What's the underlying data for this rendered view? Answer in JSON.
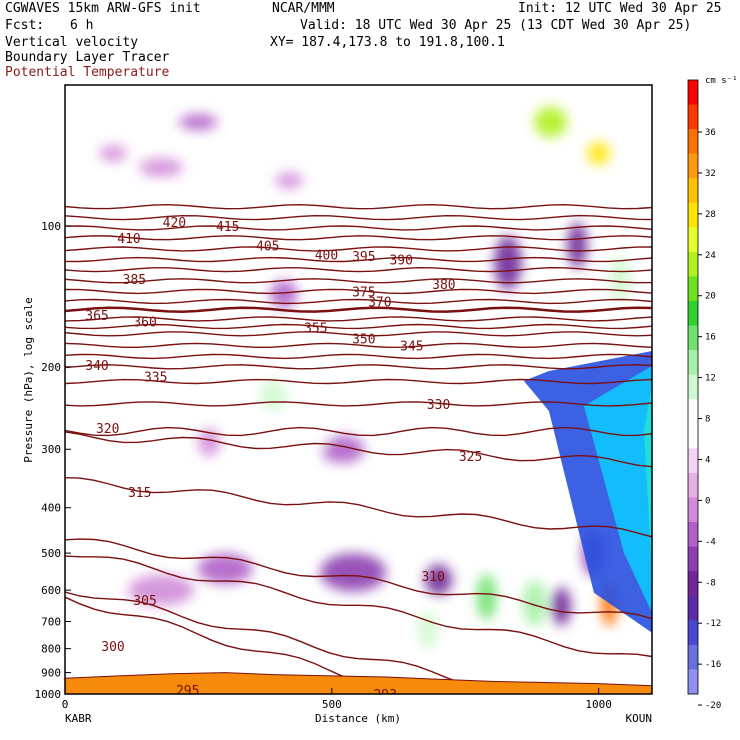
{
  "header": {
    "model": "CGWAVES 15km ARW-GFS init",
    "org": "NCAR/MMM",
    "init": "Init: 12 UTC Wed 30 Apr 25",
    "fcst_label": "Fcst:",
    "fcst_value": "6 h",
    "valid": "Valid: 18 UTC Wed 30 Apr 25 (13 CDT Wed 30 Apr 25)",
    "field1": "Vertical velocity",
    "field2": "Boundary Layer Tracer",
    "field3": "Potential Temperature",
    "xy": "XY= 187.4,173.8 to 191.8,100.1"
  },
  "colors": {
    "theta_contour": "#7a1010",
    "field3_text": "#8b1a1a",
    "terrain": "#f58a0b"
  },
  "chart_data": {
    "type": "heatmap",
    "xlabel": "Distance (km)",
    "ylabel": "Pressure (hPa), log scale",
    "x_range": [
      0,
      1100
    ],
    "x_ticks": [
      "0",
      "500",
      "1000"
    ],
    "x_end_labels": [
      "KABR",
      "KOUN"
    ],
    "y_scale": "log",
    "y_range": [
      1000,
      50
    ],
    "y_ticks": [
      100,
      200,
      300,
      400,
      500,
      600,
      700,
      800,
      900,
      1000
    ],
    "colorbar": {
      "units": "cm s⁻¹",
      "labels": [
        36,
        32,
        28,
        24,
        20,
        16,
        12,
        8,
        4,
        0,
        -4,
        -8,
        -12,
        -16,
        -20
      ],
      "colors": [
        "#ff0000",
        "#ff3a00",
        "#ff7000",
        "#ff9a10",
        "#ffc000",
        "#ffe400",
        "#e6ff30",
        "#b0f020",
        "#6ee020",
        "#30d030",
        "#70e070",
        "#a8f0a8",
        "#d0f8d0",
        "#ffffff",
        "#ffffff",
        "#f4d4f4",
        "#e6b0e6",
        "#d08cd8",
        "#b060c8",
        "#8c40b0",
        "#6f2898",
        "#5a2ca8",
        "#4848d0",
        "#6870e0",
        "#9090f0"
      ]
    },
    "theta_contours": [
      {
        "value": 295,
        "p": 925
      },
      {
        "value": 300,
        "p": 830
      },
      {
        "value": 305,
        "p": 650
      },
      {
        "value": 310,
        "p": 570
      },
      {
        "value": 315,
        "p": 400
      },
      {
        "value": 320,
        "p": 300
      },
      {
        "value": 325,
        "p": 275
      },
      {
        "value": 330,
        "p": 240
      },
      {
        "value": 335,
        "p": 215
      },
      {
        "value": 340,
        "p": 200
      },
      {
        "value": 345,
        "p": 190
      },
      {
        "value": 350,
        "p": 180
      },
      {
        "value": 355,
        "p": 170
      },
      {
        "value": 360,
        "p": 164
      },
      {
        "value": 365,
        "p": 158
      },
      {
        "value": 370,
        "p": 151
      },
      {
        "value": 375,
        "p": 145
      },
      {
        "value": 380,
        "p": 138
      },
      {
        "value": 385,
        "p": 131
      },
      {
        "value": 390,
        "p": 124
      },
      {
        "value": 395,
        "p": 118
      },
      {
        "value": 400,
        "p": 112
      },
      {
        "value": 405,
        "p": 106
      },
      {
        "value": 410,
        "p": 101
      },
      {
        "value": 415,
        "p": 96
      },
      {
        "value": 420,
        "p": 91
      }
    ],
    "theta_labels": [
      {
        "text": "420",
        "x": 205,
        "p": 98
      },
      {
        "text": "415",
        "x": 305,
        "p": 100
      },
      {
        "text": "410",
        "x": 120,
        "p": 106
      },
      {
        "text": "405",
        "x": 380,
        "p": 110
      },
      {
        "text": "400",
        "x": 490,
        "p": 115
      },
      {
        "text": "395",
        "x": 560,
        "p": 116
      },
      {
        "text": "390",
        "x": 630,
        "p": 118
      },
      {
        "text": "385",
        "x": 130,
        "p": 130
      },
      {
        "text": "380",
        "x": 710,
        "p": 133
      },
      {
        "text": "375",
        "x": 560,
        "p": 138
      },
      {
        "text": "370",
        "x": 590,
        "p": 145
      },
      {
        "text": "365",
        "x": 60,
        "p": 155
      },
      {
        "text": "360",
        "x": 150,
        "p": 160
      },
      {
        "text": "355",
        "x": 470,
        "p": 165
      },
      {
        "text": "350",
        "x": 560,
        "p": 174
      },
      {
        "text": "345",
        "x": 650,
        "p": 180
      },
      {
        "text": "340",
        "x": 60,
        "p": 198
      },
      {
        "text": "335",
        "x": 170,
        "p": 210
      },
      {
        "text": "330",
        "x": 700,
        "p": 240
      },
      {
        "text": "325",
        "x": 760,
        "p": 310
      },
      {
        "text": "320",
        "x": 80,
        "p": 270
      },
      {
        "text": "315",
        "x": 140,
        "p": 370
      },
      {
        "text": "310",
        "x": 690,
        "p": 560
      },
      {
        "text": "305",
        "x": 150,
        "p": 630
      },
      {
        "text": "300",
        "x": 90,
        "p": 790
      },
      {
        "text": "295",
        "x": 230,
        "p": 980
      },
      {
        "text": "293",
        "x": 600,
        "p": 1000
      }
    ],
    "velocity_blobs": [
      {
        "x": 250,
        "p": 60,
        "rx": 35,
        "ry": 10,
        "w": -8
      },
      {
        "x": 180,
        "p": 75,
        "rx": 40,
        "ry": 12,
        "w": -4
      },
      {
        "x": 90,
        "p": 70,
        "rx": 25,
        "ry": 10,
        "w": -4
      },
      {
        "x": 210,
        "p": 130,
        "rx": 30,
        "ry": 25,
        "w": 6
      },
      {
        "x": 410,
        "p": 140,
        "rx": 25,
        "ry": 18,
        "w": -6
      },
      {
        "x": 420,
        "p": 80,
        "rx": 25,
        "ry": 10,
        "w": -4
      },
      {
        "x": 390,
        "p": 230,
        "rx": 25,
        "ry": 20,
        "w": 8
      },
      {
        "x": 300,
        "p": 190,
        "rx": 30,
        "ry": 12,
        "w": 4
      },
      {
        "x": 500,
        "p": 190,
        "rx": 20,
        "ry": 15,
        "w": 4
      },
      {
        "x": 270,
        "p": 290,
        "rx": 20,
        "ry": 18,
        "w": -4
      },
      {
        "x": 520,
        "p": 300,
        "rx": 40,
        "ry": 18,
        "w": -8
      },
      {
        "x": 470,
        "p": 280,
        "rx": 25,
        "ry": 20,
        "w": 4
      },
      {
        "x": 830,
        "p": 120,
        "rx": 25,
        "ry": 35,
        "w": -12
      },
      {
        "x": 800,
        "p": 230,
        "rx": 18,
        "ry": 25,
        "w": 6
      },
      {
        "x": 910,
        "p": 60,
        "rx": 30,
        "ry": 20,
        "w": 20
      },
      {
        "x": 960,
        "p": 110,
        "rx": 18,
        "ry": 30,
        "w": -12
      },
      {
        "x": 1040,
        "p": 130,
        "rx": 20,
        "ry": 30,
        "w": 8
      },
      {
        "x": 1000,
        "p": 70,
        "rx": 20,
        "ry": 15,
        "w": 24
      },
      {
        "x": 300,
        "p": 540,
        "rx": 50,
        "ry": 20,
        "w": -6
      },
      {
        "x": 540,
        "p": 550,
        "rx": 60,
        "ry": 25,
        "w": -10
      },
      {
        "x": 700,
        "p": 570,
        "rx": 25,
        "ry": 20,
        "w": -12
      },
      {
        "x": 790,
        "p": 620,
        "rx": 18,
        "ry": 30,
        "w": 12
      },
      {
        "x": 680,
        "p": 730,
        "rx": 18,
        "ry": 25,
        "w": 8
      },
      {
        "x": 880,
        "p": 640,
        "rx": 22,
        "ry": 30,
        "w": 10
      },
      {
        "x": 930,
        "p": 650,
        "rx": 18,
        "ry": 25,
        "w": -12
      },
      {
        "x": 1020,
        "p": 640,
        "rx": 15,
        "ry": 30,
        "w": 32
      },
      {
        "x": 990,
        "p": 500,
        "rx": 20,
        "ry": 30,
        "w": -10
      },
      {
        "x": 180,
        "p": 600,
        "rx": 60,
        "ry": 20,
        "w": -4
      }
    ],
    "tracer_region": {
      "x_start": 860,
      "x_end": 1100,
      "p_top": 185,
      "p_bottom": 740
    },
    "terrain_profile": [
      {
        "x": 0,
        "p": 925
      },
      {
        "x": 100,
        "p": 915
      },
      {
        "x": 200,
        "p": 905
      },
      {
        "x": 300,
        "p": 900
      },
      {
        "x": 400,
        "p": 910
      },
      {
        "x": 500,
        "p": 915
      },
      {
        "x": 600,
        "p": 920
      },
      {
        "x": 700,
        "p": 930
      },
      {
        "x": 800,
        "p": 940
      },
      {
        "x": 900,
        "p": 945
      },
      {
        "x": 1000,
        "p": 950
      },
      {
        "x": 1100,
        "p": 960
      }
    ]
  }
}
